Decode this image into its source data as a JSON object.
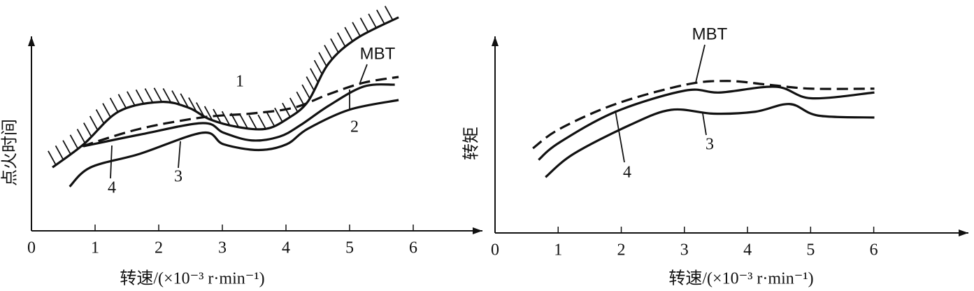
{
  "chart_data": [
    {
      "type": "line",
      "x_label": "转速/(×10⁻³ r·min⁻¹)",
      "y_label": "点火时间",
      "xlim": [
        0,
        7
      ],
      "ylim": [
        0,
        120
      ],
      "xticks": [
        0,
        1,
        2,
        3,
        4,
        5,
        6
      ],
      "annotations": [
        "2"
      ],
      "series": [
        {
          "name": "1",
          "color": "#111111",
          "hatch": true,
          "x": [
            0.33,
            0.82,
            1.37,
            2.03,
            2.47,
            2.8,
            3.24,
            3.68,
            4.01,
            4.34,
            4.67,
            5.11,
            5.77
          ],
          "values": [
            33,
            45,
            62,
            67,
            64,
            58,
            54,
            53,
            58,
            67,
            87,
            100,
            111
          ]
        },
        {
          "name": "MBT",
          "color": "#111111",
          "dash": true,
          "x": [
            0.8,
            1.7,
            2.69,
            3.46,
            4.12,
            4.67,
            5.22,
            5.77
          ],
          "values": [
            44,
            53,
            59,
            61,
            64,
            71,
            77,
            80
          ]
        },
        {
          "name": "4",
          "color": "#111111",
          "x": [
            0.82,
            1.7,
            2.69,
            3.02,
            3.46,
            3.9,
            4.23,
            4.67,
            5.22,
            5.71
          ],
          "values": [
            44,
            50,
            56,
            51,
            47,
            49,
            55,
            65,
            75,
            76
          ]
        },
        {
          "name": "3",
          "color": "#111111",
          "x": [
            0.6,
            0.93,
            1.7,
            2.69,
            3.02,
            3.57,
            4.01,
            4.34,
            5,
            5.77
          ],
          "values": [
            23,
            33,
            40,
            51,
            45,
            42,
            45,
            53,
            63,
            68
          ]
        }
      ]
    },
    {
      "type": "line",
      "x_label": "转速/(×10⁻³ r·min⁻¹)",
      "y_label": "转矩",
      "xlim": [
        0,
        7.5
      ],
      "ylim": [
        0,
        120
      ],
      "xticks": [
        0,
        1,
        2,
        3,
        4,
        5,
        6
      ],
      "series": [
        {
          "name": "MBT",
          "color": "#111111",
          "dash": true,
          "x": [
            0.6,
            1.02,
            1.91,
            3.01,
            3.68,
            4.34,
            5.01,
            6.01
          ],
          "values": [
            44,
            54,
            67,
            77,
            79,
            77,
            75,
            75
          ]
        },
        {
          "name": "4",
          "color": "#111111",
          "x": [
            0.69,
            1.02,
            1.91,
            3.01,
            3.56,
            4.45,
            5.01,
            6.01
          ],
          "values": [
            38,
            47,
            63,
            74,
            73,
            76,
            70,
            73
          ]
        },
        {
          "name": "3",
          "color": "#111111",
          "x": [
            0.8,
            1.24,
            2.13,
            2.79,
            3.46,
            4.12,
            4.67,
            5.12,
            6.01
          ],
          "values": [
            29,
            41,
            56,
            64,
            62,
            63,
            67,
            61,
            60
          ]
        }
      ]
    }
  ]
}
